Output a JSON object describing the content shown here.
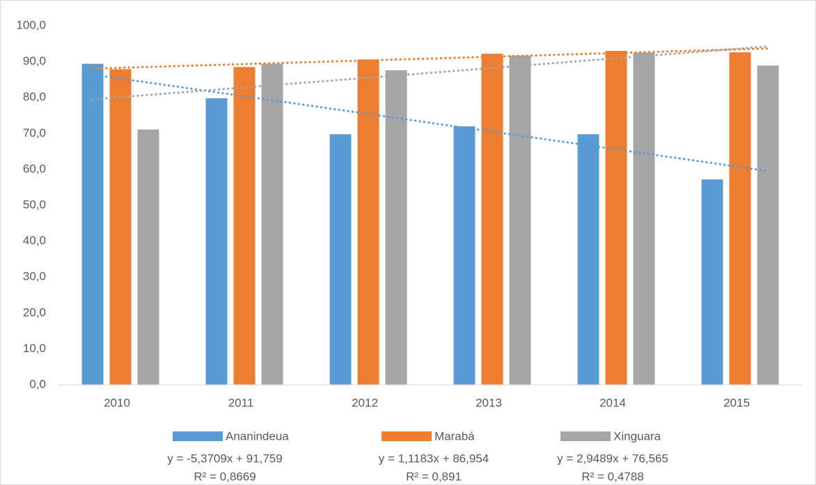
{
  "chart_data": {
    "type": "bar",
    "categories": [
      "2010",
      "2011",
      "2012",
      "2013",
      "2014",
      "2015"
    ],
    "series": [
      {
        "name": "Ananindeua",
        "color": "#5b9bd5",
        "values": [
          89.4,
          79.8,
          69.8,
          72.0,
          69.8,
          57.2
        ],
        "trendline": {
          "slope": -5.3709,
          "intercept": 91.759,
          "equation": "y = -5,3709x + 91,759",
          "r_squared": "R² = 0,8669"
        }
      },
      {
        "name": "Marabá",
        "color": "#ed7d31",
        "values": [
          87.9,
          88.5,
          90.6,
          92.2,
          93.0,
          92.6
        ],
        "trendline": {
          "slope": 1.1183,
          "intercept": 86.954,
          "equation": "y = 1,1183x + 86,954",
          "r_squared": "R² = 0,891"
        }
      },
      {
        "name": "Xinguara",
        "color": "#a5a5a5",
        "values": [
          71.1,
          89.4,
          87.6,
          91.7,
          92.5,
          88.9
        ],
        "trendline": {
          "slope": 2.9489,
          "intercept": 76.565,
          "equation": "y = 2,9489x + 76,565",
          "r_squared": "R² = 0,4788"
        }
      }
    ],
    "ylim": [
      0,
      100
    ],
    "yticks": [
      {
        "value": 0,
        "label": "0,0"
      },
      {
        "value": 10,
        "label": "10,0"
      },
      {
        "value": 20,
        "label": "20,0"
      },
      {
        "value": 30,
        "label": "30,0"
      },
      {
        "value": 40,
        "label": "40,0"
      },
      {
        "value": 50,
        "label": "50,0"
      },
      {
        "value": 60,
        "label": "60,0"
      },
      {
        "value": 70,
        "label": "70,0"
      },
      {
        "value": 80,
        "label": "80,0"
      },
      {
        "value": 90,
        "label": "90,0"
      },
      {
        "value": 100,
        "label": "100,0"
      }
    ],
    "grid": false,
    "legend": "bottom"
  }
}
